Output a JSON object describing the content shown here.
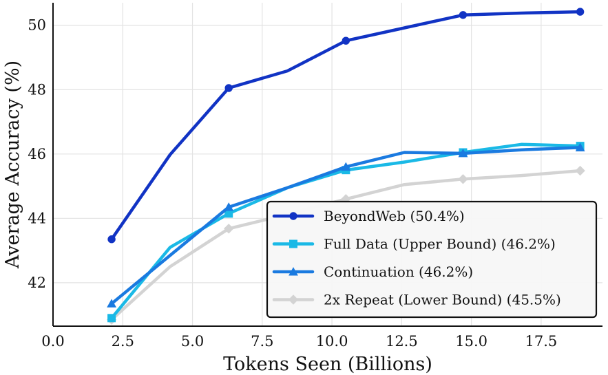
{
  "chart_data": {
    "type": "line",
    "xlabel": "Tokens Seen (Billions)",
    "ylabel": "Average Accuracy (%)",
    "xlim": [
      0.0,
      19.7
    ],
    "ylim": [
      40.65,
      50.7
    ],
    "xticks": [
      0.0,
      2.5,
      5.0,
      7.5,
      10.0,
      12.5,
      15.0,
      17.5
    ],
    "xtick_labels": [
      "0.0",
      "2.5",
      "5.0",
      "7.5",
      "10.0",
      "12.5",
      "15.0",
      "17.5"
    ],
    "yticks": [
      42,
      44,
      46,
      48,
      50
    ],
    "ytick_labels": [
      "42",
      "44",
      "46",
      "48",
      "50"
    ],
    "grid": true,
    "legend_position": "lower-right",
    "series": [
      {
        "name": "2x Repeat (Lower Bound) (45.5%)",
        "color": "#d3d3d3",
        "marker": "diamond",
        "x": [
          2.1,
          4.2,
          6.3,
          8.4,
          10.5,
          12.6,
          14.7,
          16.8,
          18.9
        ],
        "y": [
          40.85,
          42.5,
          43.68,
          44.12,
          44.6,
          45.05,
          45.22,
          45.33,
          45.48
        ],
        "markers_at": [
          0,
          2,
          4,
          6,
          8
        ]
      },
      {
        "name": "Full Data (Upper Bound) (46.2%)",
        "color": "#1ab9e6",
        "marker": "square",
        "x": [
          2.1,
          4.2,
          6.3,
          8.4,
          10.5,
          12.6,
          14.7,
          16.8,
          18.9
        ],
        "y": [
          40.9,
          43.1,
          44.15,
          44.95,
          45.5,
          45.75,
          46.05,
          46.3,
          46.25
        ],
        "markers_at": [
          0,
          2,
          4,
          6,
          8
        ]
      },
      {
        "name": "Continuation (46.2%)",
        "color": "#1a7ae0",
        "marker": "triangle",
        "x": [
          2.1,
          4.2,
          6.3,
          8.4,
          10.5,
          12.6,
          14.7,
          16.8,
          18.9
        ],
        "y": [
          41.35,
          42.85,
          44.35,
          44.95,
          45.6,
          46.05,
          46.02,
          46.13,
          46.2
        ],
        "markers_at": [
          0,
          2,
          4,
          6,
          8
        ]
      },
      {
        "name": "BeyondWeb (50.4%)",
        "color": "#1133c4",
        "marker": "circle",
        "x": [
          2.1,
          4.2,
          6.3,
          8.4,
          10.5,
          12.6,
          14.7,
          16.8,
          18.9
        ],
        "y": [
          43.35,
          45.98,
          48.05,
          48.58,
          49.52,
          49.92,
          50.32,
          50.38,
          50.42
        ],
        "markers_at": [
          0,
          2,
          4,
          6,
          8
        ]
      }
    ],
    "legend_order": [
      3,
      1,
      2,
      0
    ]
  }
}
